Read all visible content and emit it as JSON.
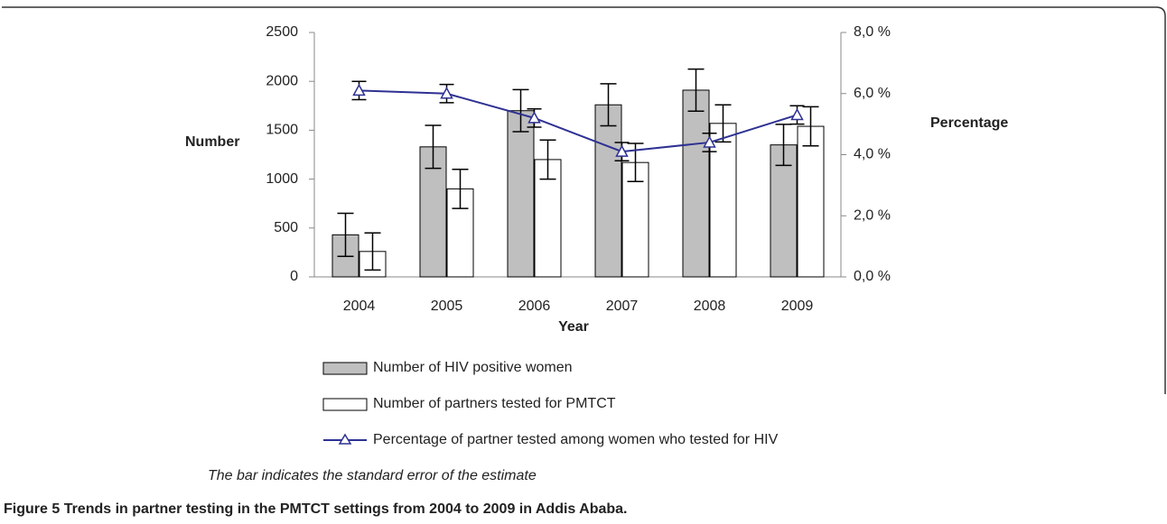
{
  "chart_data": {
    "type": "bar",
    "categories": [
      "2004",
      "2005",
      "2006",
      "2007",
      "2008",
      "2009"
    ],
    "xlabel": "Year",
    "ylabel": "Number",
    "y2label": "Percentage",
    "ylim": [
      0,
      2500
    ],
    "yticks": [
      0,
      500,
      1000,
      1500,
      2000,
      2500
    ],
    "y2lim": [
      0,
      8
    ],
    "y2ticks": [
      {
        "value": 0,
        "label": "0,0 %"
      },
      {
        "value": 2,
        "label": "2,0 %"
      },
      {
        "value": 4,
        "label": "4,0 %"
      },
      {
        "value": 6,
        "label": "6,0 %"
      },
      {
        "value": 8,
        "label": "8,0 %"
      }
    ],
    "series": [
      {
        "name": "Number of HIV positive women",
        "type": "bar",
        "color": "#bfbfbf",
        "values": [
          430,
          1330,
          1700,
          1760,
          1910,
          1350
        ],
        "errors": [
          220,
          220,
          215,
          215,
          215,
          210
        ]
      },
      {
        "name": "Number of partners tested for PMTCT",
        "type": "bar",
        "color": "#ffffff",
        "values": [
          260,
          900,
          1200,
          1170,
          1570,
          1540
        ],
        "errors": [
          190,
          200,
          200,
          195,
          190,
          200
        ]
      },
      {
        "name": "Percentage of partner tested among women who tested for HIV",
        "type": "line",
        "axis": "y2",
        "color": "#2e3192",
        "values": [
          6.1,
          6.0,
          5.2,
          4.1,
          4.4,
          5.3
        ],
        "errors": [
          0.3,
          0.3,
          0.3,
          0.3,
          0.3,
          0.3
        ]
      }
    ],
    "note": "The bar indicates the standard error of the estimate",
    "caption_label": "Figure 5",
    "caption": "Trends in partner testing in the PMTCT settings from 2004 to 2009 in Addis Ababa."
  }
}
